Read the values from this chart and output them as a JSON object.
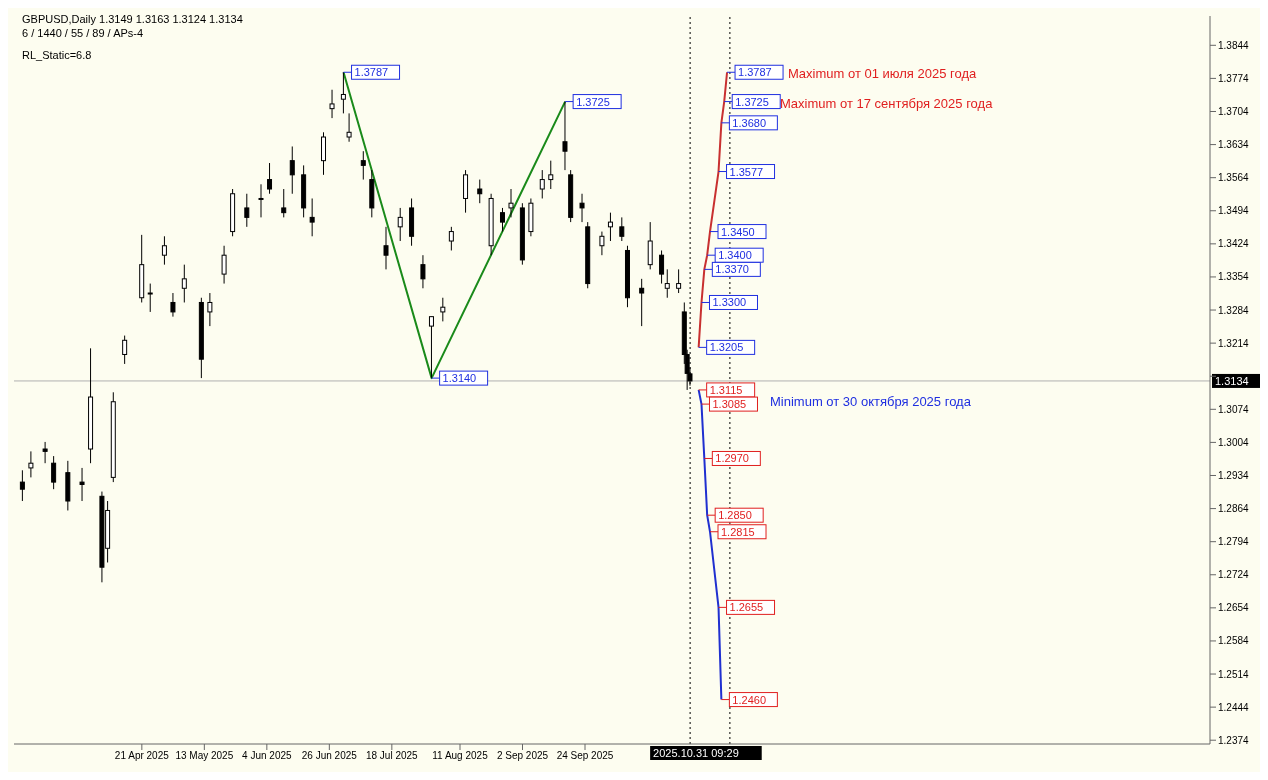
{
  "chart_data": {
    "type": "candlestick",
    "title": "GBPUSD,Daily  1.3149 1.3163 1.3124 1.3134",
    "subtitle": "6 / 1440 / 55 / 89 / APs-4",
    "color": "#000000",
    "x": [
      "2025-03-10",
      "2025-03-13",
      "2025-03-18",
      "2025-03-21",
      "2025-03-26",
      "2025-03-31",
      "2025-04-03",
      "2025-04-07",
      "2025-04-09",
      "2025-04-11",
      "2025-04-15",
      "2025-04-21",
      "2025-04-24",
      "2025-04-29",
      "2025-05-02",
      "2025-05-06",
      "2025-05-12",
      "2025-05-15",
      "2025-05-20",
      "2025-05-23",
      "2025-05-28",
      "2025-06-02",
      "2025-06-05",
      "2025-06-10",
      "2025-06-13",
      "2025-06-17",
      "2025-06-20",
      "2025-06-24",
      "2025-06-27",
      "2025-07-01",
      "2025-07-03",
      "2025-07-08",
      "2025-07-11",
      "2025-07-16",
      "2025-07-21",
      "2025-07-25",
      "2025-07-29",
      "2025-08-01",
      "2025-08-05",
      "2025-08-08",
      "2025-08-13",
      "2025-08-18",
      "2025-08-22",
      "2025-08-26",
      "2025-08-29",
      "2025-09-02",
      "2025-09-05",
      "2025-09-09",
      "2025-09-12",
      "2025-09-17",
      "2025-09-19",
      "2025-09-23",
      "2025-09-25",
      "2025-09-30",
      "2025-10-03",
      "2025-10-07",
      "2025-10-09",
      "2025-10-14",
      "2025-10-17",
      "2025-10-21",
      "2025-10-23",
      "2025-10-27",
      "2025-10-29",
      "2025-10-30",
      "2025-10-31"
    ],
    "ohlc": [
      [
        1.292,
        1.2945,
        1.288,
        1.2905
      ],
      [
        1.295,
        1.2985,
        1.293,
        1.296
      ],
      [
        1.299,
        1.3005,
        1.296,
        1.2985
      ],
      [
        1.296,
        1.2975,
        1.2905,
        1.292
      ],
      [
        1.294,
        1.2965,
        1.286,
        1.288
      ],
      [
        1.292,
        1.295,
        1.288,
        1.2915
      ],
      [
        1.299,
        1.3203,
        1.296,
        1.31
      ],
      [
        1.289,
        1.29,
        1.2708,
        1.274
      ],
      [
        1.278,
        1.288,
        1.275,
        1.286
      ],
      [
        1.293,
        1.311,
        1.292,
        1.309
      ],
      [
        1.319,
        1.323,
        1.317,
        1.322
      ],
      [
        1.331,
        1.3443,
        1.33,
        1.338
      ],
      [
        1.332,
        1.334,
        1.328,
        1.332
      ],
      [
        1.34,
        1.344,
        1.338,
        1.342
      ],
      [
        1.33,
        1.332,
        1.327,
        1.328
      ],
      [
        1.333,
        1.338,
        1.33,
        1.335
      ],
      [
        1.33,
        1.331,
        1.314,
        1.318
      ],
      [
        1.328,
        1.332,
        1.325,
        1.33
      ],
      [
        1.336,
        1.342,
        1.334,
        1.34
      ],
      [
        1.345,
        1.354,
        1.344,
        1.353
      ],
      [
        1.35,
        1.353,
        1.346,
        1.348
      ],
      [
        1.352,
        1.355,
        1.348,
        1.352
      ],
      [
        1.356,
        1.3595,
        1.353,
        1.354
      ],
      [
        1.35,
        1.354,
        1.348,
        1.349
      ],
      [
        1.36,
        1.363,
        1.353,
        1.357
      ],
      [
        1.357,
        1.359,
        1.348,
        1.35
      ],
      [
        1.348,
        1.352,
        1.344,
        1.347
      ],
      [
        1.36,
        1.366,
        1.357,
        1.365
      ],
      [
        1.371,
        1.375,
        1.369,
        1.372
      ],
      [
        1.373,
        1.3787,
        1.37,
        1.374
      ],
      [
        1.365,
        1.37,
        1.364,
        1.366
      ],
      [
        1.36,
        1.362,
        1.356,
        1.359
      ],
      [
        1.356,
        1.358,
        1.348,
        1.35
      ],
      [
        1.342,
        1.346,
        1.337,
        1.34
      ],
      [
        1.346,
        1.35,
        1.343,
        1.348
      ],
      [
        1.35,
        1.352,
        1.342,
        1.344
      ],
      [
        1.338,
        1.34,
        1.333,
        1.335
      ],
      [
        1.325,
        1.327,
        1.314,
        1.327
      ],
      [
        1.328,
        1.331,
        1.326,
        1.329
      ],
      [
        1.343,
        1.346,
        1.341,
        1.345
      ],
      [
        1.352,
        1.358,
        1.349,
        1.357
      ],
      [
        1.354,
        1.356,
        1.351,
        1.353
      ],
      [
        1.342,
        1.353,
        1.34,
        1.352
      ],
      [
        1.349,
        1.35,
        1.345,
        1.347
      ],
      [
        1.35,
        1.354,
        1.348,
        1.351
      ],
      [
        1.35,
        1.351,
        1.338,
        1.339
      ],
      [
        1.345,
        1.352,
        1.344,
        1.351
      ],
      [
        1.354,
        1.358,
        1.352,
        1.356
      ],
      [
        1.356,
        1.36,
        1.354,
        1.357
      ],
      [
        1.364,
        1.3725,
        1.358,
        1.362
      ],
      [
        1.357,
        1.358,
        1.347,
        1.348
      ],
      [
        1.351,
        1.353,
        1.347,
        1.35
      ],
      [
        1.346,
        1.347,
        1.333,
        1.334
      ],
      [
        1.342,
        1.345,
        1.34,
        1.344
      ],
      [
        1.346,
        1.349,
        1.343,
        1.347
      ],
      [
        1.346,
        1.348,
        1.343,
        1.344
      ],
      [
        1.341,
        1.342,
        1.329,
        1.331
      ],
      [
        1.333,
        1.335,
        1.325,
        1.332
      ],
      [
        1.338,
        1.347,
        1.337,
        1.343
      ],
      [
        1.34,
        1.341,
        1.334,
        1.336
      ],
      [
        1.333,
        1.337,
        1.331,
        1.334
      ],
      [
        1.333,
        1.337,
        1.332,
        1.334
      ],
      [
        1.328,
        1.33,
        1.317,
        1.319
      ],
      [
        1.319,
        1.32,
        1.3115,
        1.315
      ],
      [
        1.3149,
        1.3163,
        1.3124,
        1.3134
      ]
    ],
    "series": [
      {
        "type": "line",
        "color": "#1a8a1a",
        "x": [
          "2025-07-01",
          "2025-08-01",
          "2025-09-17"
        ],
        "values": [
          1.3787,
          1.314,
          1.3725
        ],
        "value_labels": [
          "1.3787",
          "1.3140",
          "1.3725"
        ]
      },
      {
        "type": "line",
        "color": "#c83030",
        "x": [
          "2025-11-03",
          "2025-11-04",
          "2025-11-05",
          "2025-11-06",
          "2025-11-07",
          "2025-11-10",
          "2025-11-11",
          "2025-11-12",
          "2025-11-13"
        ],
        "values": [
          1.3205,
          1.33,
          1.337,
          1.34,
          1.345,
          1.3577,
          1.368,
          1.3725,
          1.3787
        ],
        "value_labels": [
          "1.3205",
          "1.3300",
          "1.3370",
          "1.3400",
          "1.3450",
          "1.3577",
          "1.3680",
          "1.3725",
          "1.3787"
        ]
      },
      {
        "type": "line",
        "color": "#2030d0",
        "x": [
          "2025-11-03",
          "2025-11-04",
          "2025-11-05",
          "2025-11-06",
          "2025-11-07",
          "2025-11-10",
          "2025-11-11"
        ],
        "values": [
          1.3115,
          1.3085,
          1.297,
          1.285,
          1.2815,
          1.2655,
          1.246
        ],
        "value_labels": [
          "1.3115",
          "1.3085",
          "1.2970",
          "1.2850",
          "1.2815",
          "1.2655",
          "1.2460"
        ]
      }
    ],
    "xlim": [
      "2025-03-07",
      "2026-05-02"
    ],
    "xticks": [
      {
        "value": "2025-04-21",
        "label": "21 Apr 2025"
      },
      {
        "value": "2025-05-13",
        "label": "13 May 2025"
      },
      {
        "value": "2025-06-04",
        "label": "4 Jun 2025"
      },
      {
        "value": "2025-06-26",
        "label": "26 Jun 2025"
      },
      {
        "value": "2025-07-18",
        "label": "18 Jul 2025"
      },
      {
        "value": "2025-08-11",
        "label": "11 Aug 2025"
      },
      {
        "value": "2025-09-02",
        "label": "2 Sep 2025"
      },
      {
        "value": "2025-09-24",
        "label": "24 Sep 2025"
      }
    ],
    "ylim": [
      1.2366,
      1.3906
    ],
    "yticks": [
      1.2374,
      1.2444,
      1.2514,
      1.2584,
      1.2654,
      1.2724,
      1.2794,
      1.2864,
      1.2934,
      1.3004,
      1.3074,
      {
        "value": 1.3144,
        "label": null
      },
      1.3214,
      1.3284,
      1.3354,
      1.3424,
      1.3494,
      1.3564,
      1.3634,
      1.3704,
      1.3774,
      1.3844
    ],
    "ref_lines": [
      {
        "axis": "y",
        "value": 1.3134,
        "label": "1.3134",
        "color": "#b0b0b0"
      },
      {
        "axis": "x",
        "value": "2025-10-31",
        "label": "2025.10.31 09:29",
        "color": "#000000",
        "line_style": "dotted"
      },
      {
        "axis": "x",
        "value": "2025-11-14",
        "color": "#000000",
        "line_style": "dotted"
      }
    ],
    "annotations": [
      "RL_Static=6.8",
      "Maximum от 01 июля 2025 года",
      "Maximum от 17 сентября 2025 года",
      "Minimum от 30 октября 2025 года"
    ]
  }
}
